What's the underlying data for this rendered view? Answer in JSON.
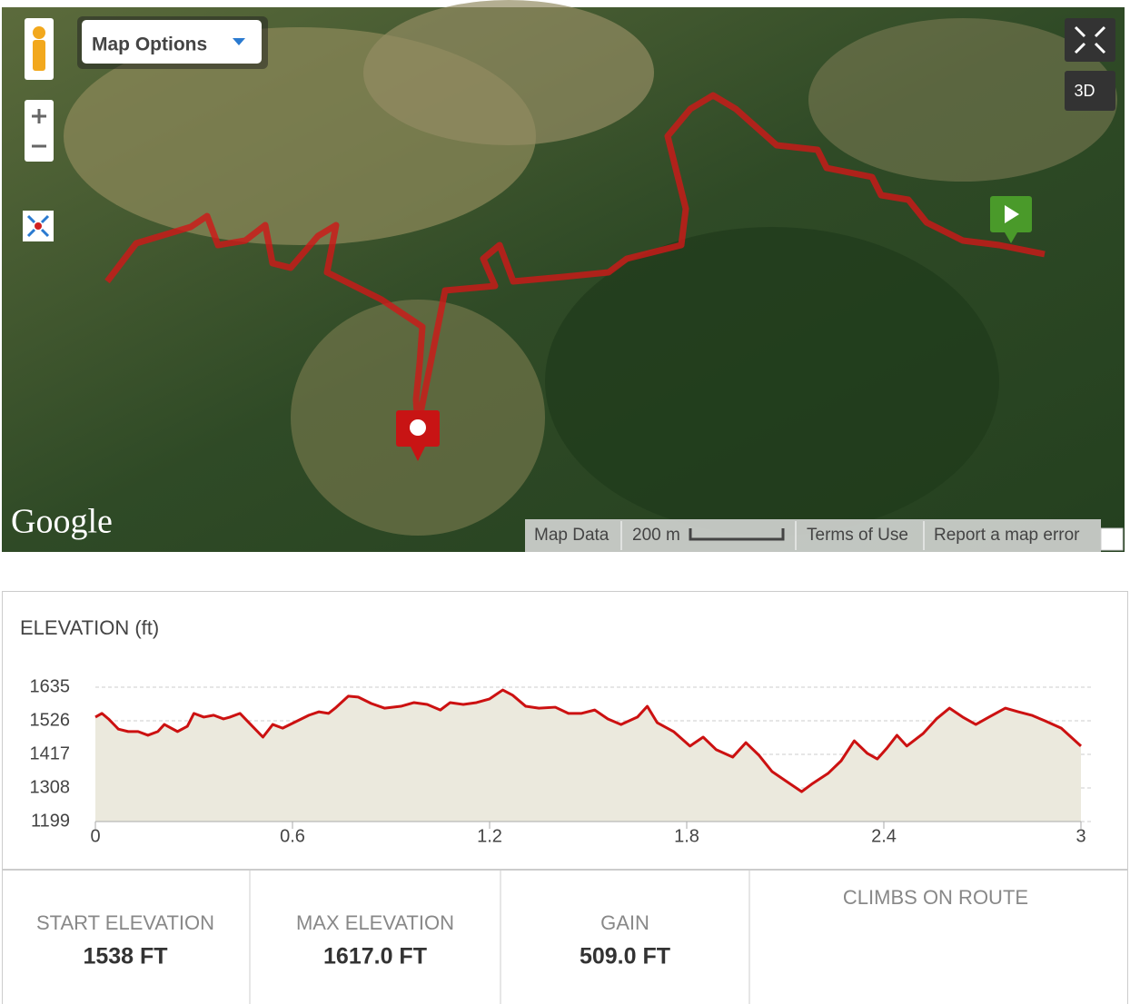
{
  "map": {
    "options_button": "Map Options",
    "view_3d": "3D",
    "brand": "Google",
    "footer": {
      "map_data": "Map Data",
      "scale": "200 m",
      "terms": "Terms of Use",
      "report": "Report a map error"
    }
  },
  "chart_data": {
    "type": "area",
    "title": "ELEVATION (ft)",
    "x": [
      0,
      0.02,
      0.04,
      0.07,
      0.1,
      0.13,
      0.16,
      0.19,
      0.21,
      0.25,
      0.28,
      0.3,
      0.33,
      0.36,
      0.39,
      0.41,
      0.44,
      0.47,
      0.51,
      0.54,
      0.57,
      0.61,
      0.65,
      0.68,
      0.71,
      0.73,
      0.77,
      0.8,
      0.84,
      0.88,
      0.93,
      0.97,
      1.01,
      1.05,
      1.08,
      1.12,
      1.16,
      1.2,
      1.24,
      1.27,
      1.31,
      1.35,
      1.4,
      1.44,
      1.48,
      1.52,
      1.56,
      1.6,
      1.65,
      1.68,
      1.71,
      1.76,
      1.81,
      1.85,
      1.89,
      1.94,
      1.98,
      2.02,
      2.06,
      2.1,
      2.15,
      2.18,
      2.23,
      2.27,
      2.31,
      2.35,
      2.38,
      2.41,
      2.44,
      2.47,
      2.52,
      2.56,
      2.6,
      2.64,
      2.68,
      2.72,
      2.77,
      2.81,
      2.85,
      2.89,
      2.94,
      3.0
    ],
    "values": [
      1538,
      1550,
      1532,
      1499,
      1491,
      1491,
      1479,
      1491,
      1514,
      1491,
      1508,
      1550,
      1538,
      1544,
      1532,
      1538,
      1550,
      1517,
      1473,
      1514,
      1502,
      1523,
      1544,
      1555,
      1550,
      1567,
      1606,
      1603,
      1582,
      1567,
      1573,
      1585,
      1579,
      1561,
      1585,
      1579,
      1585,
      1597,
      1626,
      1609,
      1573,
      1567,
      1570,
      1550,
      1550,
      1561,
      1532,
      1514,
      1538,
      1573,
      1520,
      1491,
      1444,
      1473,
      1432,
      1408,
      1455,
      1414,
      1361,
      1332,
      1296,
      1320,
      1355,
      1396,
      1461,
      1420,
      1402,
      1438,
      1479,
      1444,
      1485,
      1532,
      1567,
      1538,
      1514,
      1538,
      1567,
      1555,
      1544,
      1526,
      1502,
      1444
    ],
    "color": "#cc1111",
    "fill": "#ebe9dd",
    "xlim": [
      0,
      3
    ],
    "ylim": [
      1199,
      1635
    ],
    "xticks": [
      0,
      0.6,
      1.2,
      1.8,
      2.4,
      3
    ],
    "yticks": [
      1199,
      1308,
      1417,
      1526,
      1635
    ],
    "grid": true
  },
  "stats": [
    {
      "label": "START ELEVATION",
      "value": "1538 FT"
    },
    {
      "label": "MAX ELEVATION",
      "value": "1617.0 FT"
    },
    {
      "label": "GAIN",
      "value": "509.0 FT"
    }
  ],
  "climbs": {
    "label": "CLIMBS ON ROUTE"
  }
}
